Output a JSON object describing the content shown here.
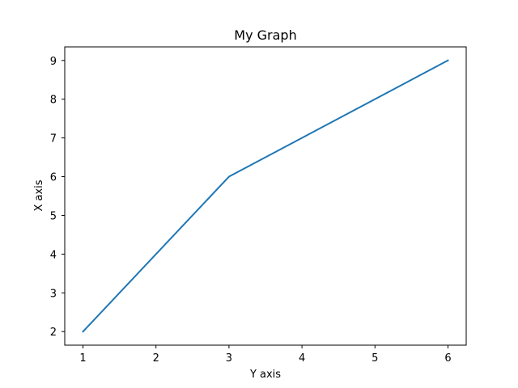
{
  "chart_data": {
    "type": "line",
    "title": "My Graph",
    "xlabel": "Y axis",
    "ylabel": "X axis",
    "x": [
      1,
      3,
      6
    ],
    "series": [
      {
        "values": [
          2,
          6,
          9
        ],
        "color": "#1f77b4"
      }
    ],
    "xlim": [
      0.75,
      6.25
    ],
    "ylim": [
      1.65,
      9.35
    ],
    "xticks": [
      "1",
      "2",
      "3",
      "4",
      "5",
      "6"
    ],
    "yticks": [
      "2",
      "3",
      "4",
      "5",
      "6",
      "7",
      "8",
      "9"
    ],
    "grid": false,
    "legend": false
  }
}
